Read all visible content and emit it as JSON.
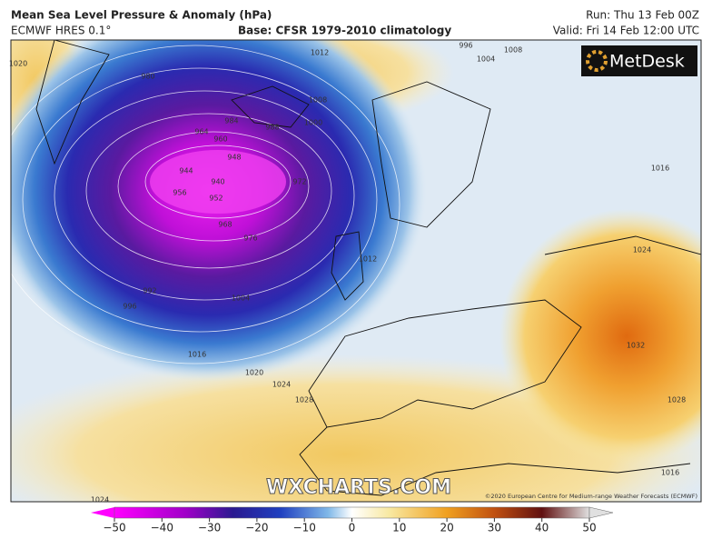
{
  "header": {
    "title": "Mean Sea Level Pressure & Anomaly (hPa)",
    "model": "ECMWF HRES 0.1°",
    "base": "Base: CFSR 1979-2010 climatology",
    "run": "Run: Thu 13 Feb 00Z",
    "valid": "Valid: Fri 14 Feb 12:00 UTC"
  },
  "logo": "MetDesk",
  "watermark": "WXCHARTS.COM",
  "copyright": "©2020 European Centre for Medium-range Weather Forecasts (ECMWF)",
  "isobar_labels": [
    "980",
    "984",
    "964",
    "960",
    "948",
    "944",
    "940",
    "956",
    "952",
    "972",
    "968",
    "976",
    "988",
    "1000",
    "1008",
    "1012",
    "992",
    "996",
    "1004",
    "1016",
    "1020",
    "1024",
    "1028",
    "1012",
    "1024",
    "1032",
    "1028",
    "1016",
    "1020",
    "1024",
    "1004",
    "1008",
    "996",
    "1016"
  ],
  "colorbar": {
    "ticks": [
      {
        "value": -50,
        "label": "−50"
      },
      {
        "value": -40,
        "label": "−40"
      },
      {
        "value": -30,
        "label": "−30"
      },
      {
        "value": -20,
        "label": "−20"
      },
      {
        "value": -10,
        "label": "−10"
      },
      0,
      10,
      20,
      30,
      40,
      50
    ]
  }
}
